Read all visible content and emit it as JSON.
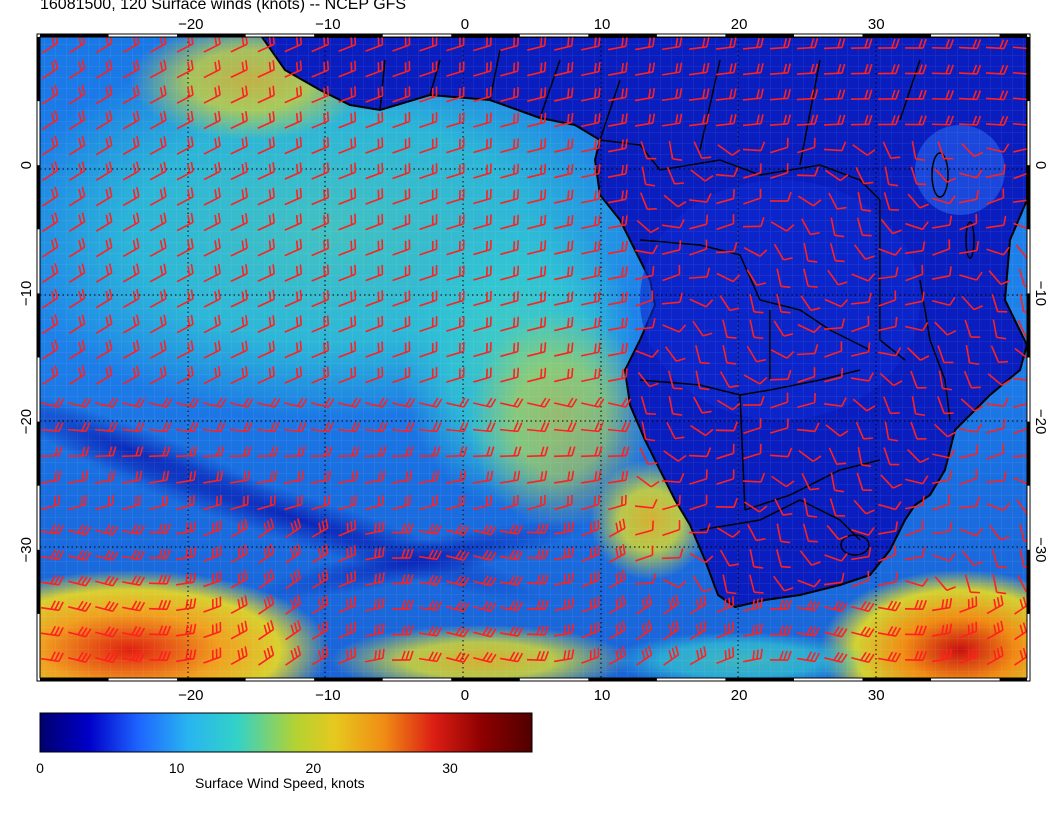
{
  "title": "16081500, 120 Surface winds (knots) -- NCEP GFS",
  "map": {
    "variable": "Surface wind speed (knots)",
    "lon_range": [
      -31,
      41
    ],
    "lat_range": [
      -40,
      10
    ],
    "lon_ticks": [
      -20,
      -10,
      0,
      10,
      20,
      30
    ],
    "lon_tick_labels": [
      "−20",
      "−10",
      "0",
      "10",
      "20",
      "30"
    ],
    "lat_ticks": [
      0,
      -10,
      -20,
      -30
    ],
    "lat_tick_labels": [
      "0",
      "−10",
      "−20",
      "−30"
    ],
    "gridlines": "dotted",
    "barb_color": "#ff2020",
    "coast_color": "#000000"
  },
  "colorbar": {
    "label": "Surface Wind Speed, knots",
    "range": [
      0,
      36
    ],
    "ticks": [
      0,
      10,
      20,
      30
    ],
    "tick_labels": [
      "0",
      "10",
      "20",
      "30"
    ],
    "colors": [
      "#00006e",
      "#0000c8",
      "#1e64ff",
      "#28b4f0",
      "#32d2c8",
      "#b4d232",
      "#e6c81e",
      "#f08c14",
      "#dc1e14",
      "#8c0000",
      "#500000"
    ]
  }
}
